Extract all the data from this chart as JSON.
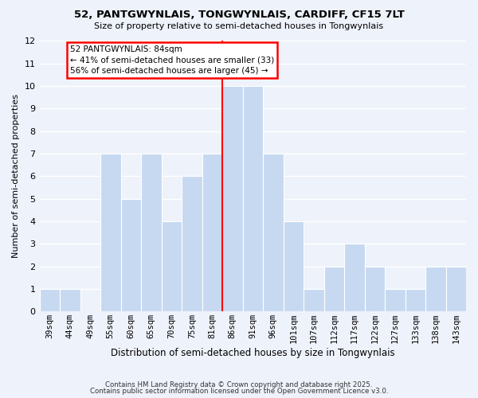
{
  "title": "52, PANTGWYNLAIS, TONGWYNLAIS, CARDIFF, CF15 7LT",
  "subtitle": "Size of property relative to semi-detached houses in Tongwynlais",
  "xlabel": "Distribution of semi-detached houses by size in Tongwynlais",
  "ylabel": "Number of semi-detached properties",
  "bar_labels": [
    "39sqm",
    "44sqm",
    "49sqm",
    "55sqm",
    "60sqm",
    "65sqm",
    "70sqm",
    "75sqm",
    "81sqm",
    "86sqm",
    "91sqm",
    "96sqm",
    "101sqm",
    "107sqm",
    "112sqm",
    "117sqm",
    "122sqm",
    "127sqm",
    "133sqm",
    "138sqm",
    "143sqm"
  ],
  "bar_values": [
    1,
    1,
    0,
    7,
    5,
    7,
    4,
    6,
    7,
    10,
    10,
    7,
    4,
    1,
    2,
    3,
    2,
    1,
    1,
    2,
    2
  ],
  "bar_color_normal": "#c6d9f1",
  "annotation_box_text": "52 PANTGWYNLAIS: 84sqm\n← 41% of semi-detached houses are smaller (33)\n56% of semi-detached houses are larger (45) →",
  "ylim": [
    0,
    12
  ],
  "yticks": [
    0,
    1,
    2,
    3,
    4,
    5,
    6,
    7,
    8,
    9,
    10,
    11,
    12
  ],
  "background_color": "#eef2fb",
  "grid_color": "#ffffff",
  "footer_line1": "Contains HM Land Registry data © Crown copyright and database right 2025.",
  "footer_line2": "Contains public sector information licensed under the Open Government Licence v3.0.",
  "red_line_bar_index": 9
}
